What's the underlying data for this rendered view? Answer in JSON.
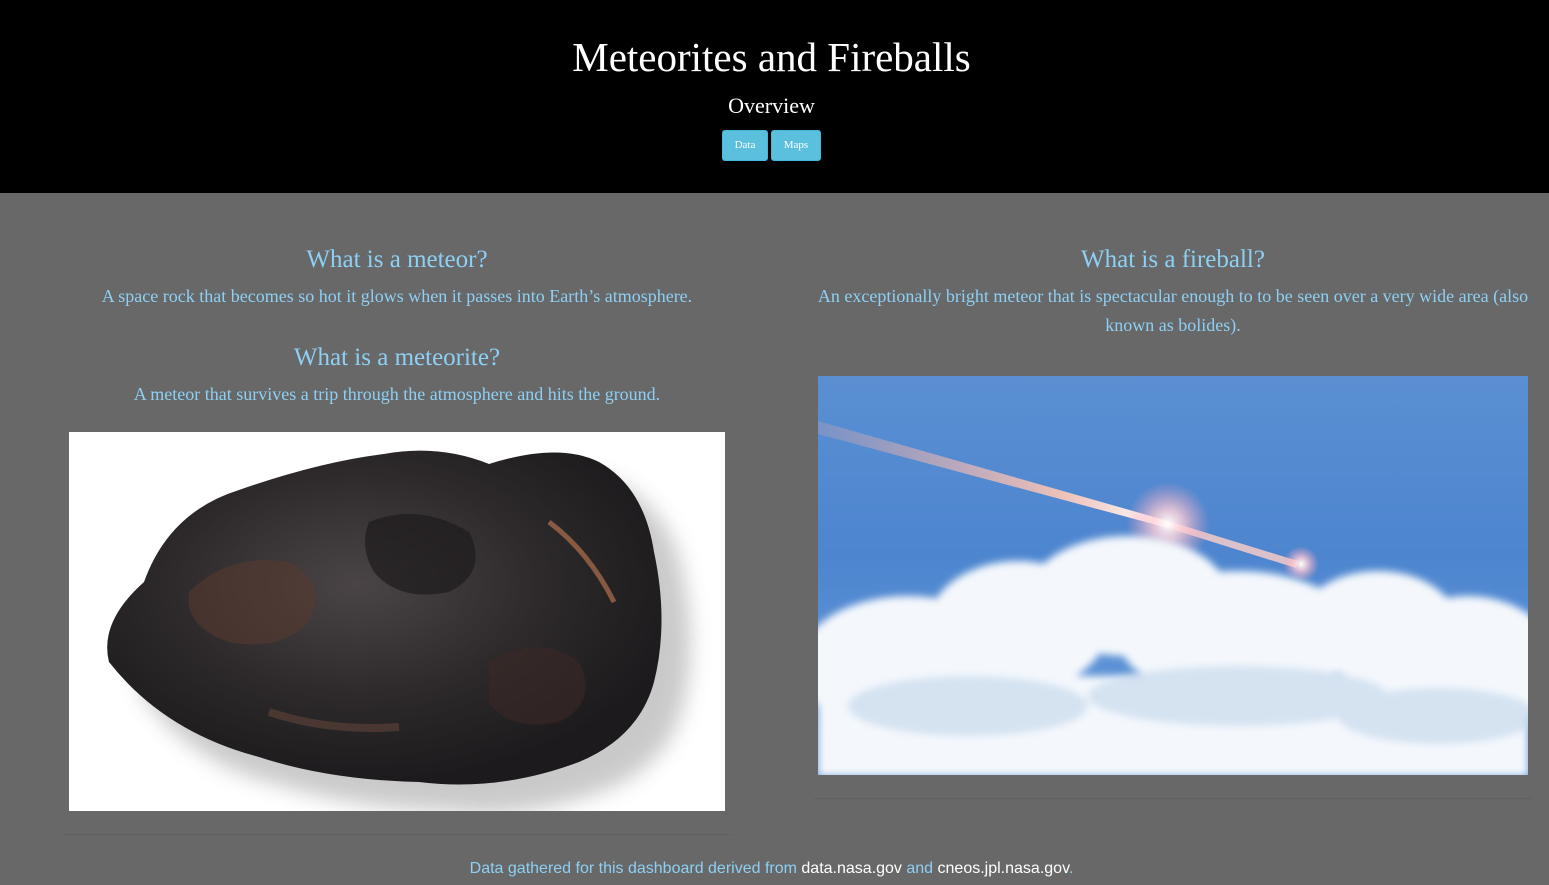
{
  "header": {
    "title": "Meteorites and Fireballs",
    "subtitle": "Overview"
  },
  "nav": {
    "data_label": "Data",
    "maps_label": "Maps"
  },
  "meteor": {
    "heading": "What is a meteor?",
    "text": "A space rock that becomes so hot it glows when it passes into Earth’s atmosphere."
  },
  "meteorite": {
    "heading": "What is a meteorite?",
    "text": "A meteor that survives a trip through the atmosphere and hits the ground."
  },
  "fireball": {
    "heading": "What is a fireball?",
    "text": "An exceptionally bright meteor that is spectacular enough to to be seen over a very wide area (also known as bolides)."
  },
  "footer": {
    "prefix": "Data gathered for this dashboard derived from ",
    "link1": "data.nasa.gov",
    "middle": " and ",
    "link2": "cneos.jpl.nasa.gov",
    "suffix": "."
  },
  "colors": {
    "header_bg": "#000000",
    "page_bg": "#686868",
    "accent_text": "#8dd0f4",
    "button_bg": "#5bc0de"
  }
}
